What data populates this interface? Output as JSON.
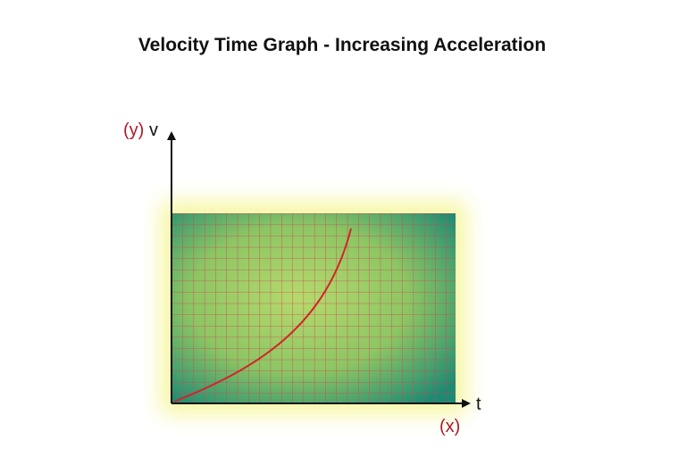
{
  "title": "Velocity Time Graph - Increasing Acceleration",
  "y_axis": {
    "variable_label": "(y)",
    "symbol": "v"
  },
  "x_axis": {
    "symbol": "t",
    "variable_label": "(x)"
  }
}
